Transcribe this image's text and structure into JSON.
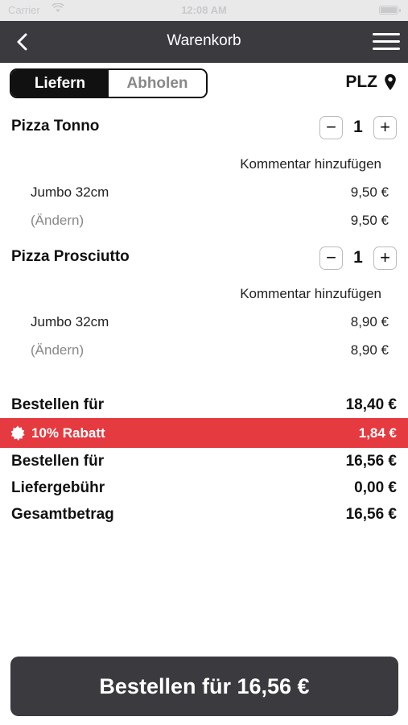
{
  "status_bar": {
    "carrier": "Carrier",
    "time": "12:08 AM"
  },
  "navbar": {
    "title": "Warenkorb"
  },
  "delivery_mode": {
    "options": [
      "Liefern",
      "Abholen"
    ],
    "selected": "Liefern"
  },
  "plz_label": "PLZ",
  "items": [
    {
      "name": "Pizza Tonno",
      "quantity": "1",
      "comment_label": "Kommentar hinzufügen",
      "size": "Jumbo 32cm",
      "size_price": "9,50 €",
      "edit_label": "(Ändern)",
      "total": "9,50 €"
    },
    {
      "name": "Pizza Prosciutto",
      "quantity": "1",
      "comment_label": "Kommentar hinzufügen",
      "size": "Jumbo 32cm",
      "size_price": "8,90 €",
      "edit_label": "(Ändern)",
      "total": "8,90 €"
    }
  ],
  "summary": {
    "subtotal_label": "Bestellen für",
    "subtotal_value": "18,40 €",
    "discount_label": "10% Rabatt",
    "discount_value": "1,84 €",
    "after_discount_label": "Bestellen für",
    "after_discount_value": "16,56 €",
    "delivery_fee_label": "Liefergebühr",
    "delivery_fee_value": "0,00 €",
    "total_label": "Gesamtbetrag",
    "total_value": "16,56 €"
  },
  "order_button_label": "Bestellen für 16,56 €",
  "colors": {
    "dark": "#3a3a3f",
    "discount": "#e53a3f"
  },
  "icons": [
    "back-chevron-icon",
    "hamburger-menu-icon",
    "location-pin-icon",
    "minus-icon",
    "plus-icon",
    "discount-badge-icon",
    "wifi-icon",
    "battery-icon"
  ]
}
